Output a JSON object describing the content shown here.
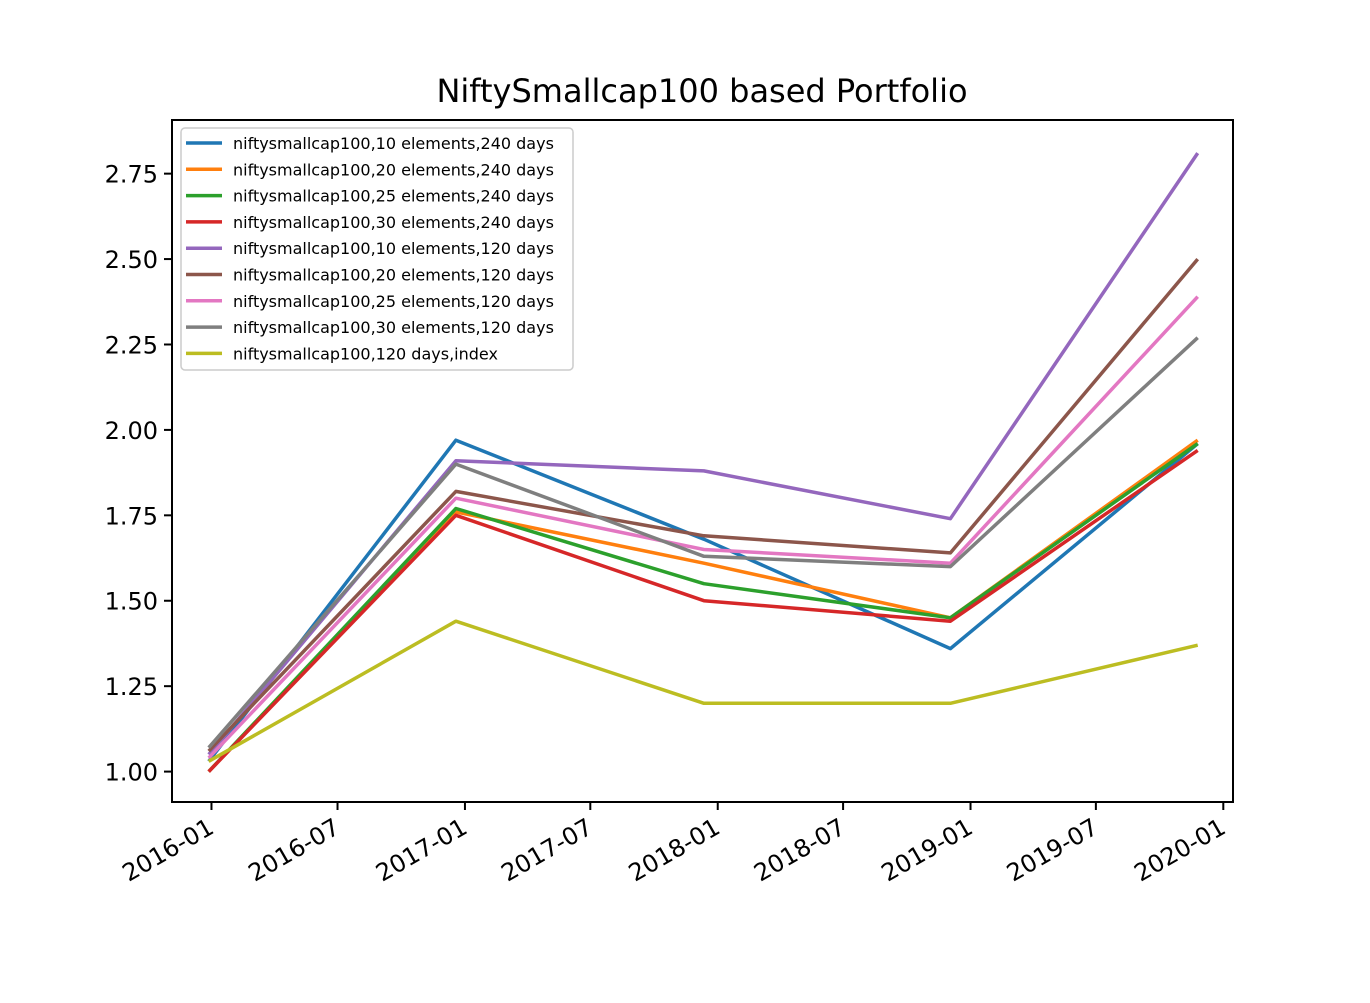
{
  "chart_data": {
    "type": "line",
    "title": "NiftySmallcap100 based Portfolio",
    "xlabel": "",
    "ylabel": "",
    "x": [
      "2015-12-28",
      "2016-12-19",
      "2017-12-12",
      "2018-12-03",
      "2019-11-25"
    ],
    "xticks": [
      "2016-01",
      "2016-07",
      "2017-01",
      "2017-07",
      "2018-01",
      "2018-07",
      "2019-01",
      "2019-07",
      "2020-01"
    ],
    "xlim": [
      "2015-11-05",
      "2020-01-15"
    ],
    "yticks": [
      1.0,
      1.25,
      1.5,
      1.75,
      2.0,
      2.25,
      2.5,
      2.75
    ],
    "ytick_labels": [
      "1.00",
      "1.25",
      "1.50",
      "1.75",
      "2.00",
      "2.25",
      "2.50",
      "2.75"
    ],
    "ylim": [
      0.911,
      2.907
    ],
    "grid": false,
    "legend_position": "upper-left",
    "series": [
      {
        "name": "niftysmallcap100,10 elements,240 days",
        "color": "#1f77b4",
        "values": [
          1.03,
          1.97,
          1.68,
          1.36,
          1.96
        ]
      },
      {
        "name": "niftysmallcap100,20 elements,240 days",
        "color": "#ff7f0e",
        "values": [
          1.0,
          1.76,
          1.61,
          1.45,
          1.97
        ]
      },
      {
        "name": "niftysmallcap100,25 elements,240 days",
        "color": "#2ca02c",
        "values": [
          1.0,
          1.77,
          1.55,
          1.45,
          1.96
        ]
      },
      {
        "name": "niftysmallcap100,30 elements,240 days",
        "color": "#d62728",
        "values": [
          1.0,
          1.75,
          1.5,
          1.44,
          1.94
        ]
      },
      {
        "name": "niftysmallcap100,10 elements,120 days",
        "color": "#9467bd",
        "values": [
          1.05,
          1.91,
          1.88,
          1.74,
          2.81
        ]
      },
      {
        "name": "niftysmallcap100,20 elements,120 days",
        "color": "#8c564b",
        "values": [
          1.06,
          1.82,
          1.69,
          1.64,
          2.5
        ]
      },
      {
        "name": "niftysmallcap100,25 elements,120 days",
        "color": "#e377c2",
        "values": [
          1.04,
          1.8,
          1.65,
          1.61,
          2.39
        ]
      },
      {
        "name": "niftysmallcap100,30 elements,120 days",
        "color": "#7f7f7f",
        "values": [
          1.07,
          1.9,
          1.63,
          1.6,
          2.27
        ]
      },
      {
        "name": "niftysmallcap100,120 days,index",
        "color": "#bcbd22",
        "values": [
          1.03,
          1.44,
          1.2,
          1.2,
          1.37
        ]
      }
    ]
  }
}
